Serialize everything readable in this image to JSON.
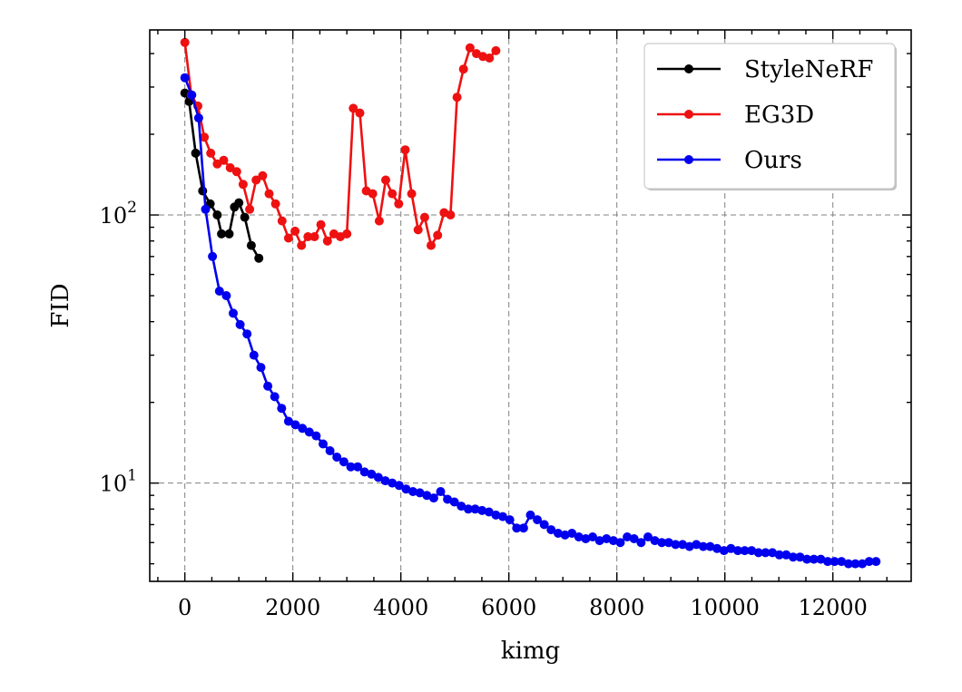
{
  "chart_data": {
    "type": "line",
    "xlabel": "kimg",
    "ylabel": "FID",
    "xlim": [
      -650,
      13450
    ],
    "ylim": [
      4.3,
      490
    ],
    "y_scale": "log",
    "x_ticks": [
      0,
      2000,
      4000,
      6000,
      8000,
      10000,
      12000
    ],
    "x_tick_labels": [
      "0",
      "2000",
      "4000",
      "6000",
      "8000",
      "10000",
      "12000"
    ],
    "y_ticks": [
      10,
      100
    ],
    "y_tick_labels": [
      {
        "base": "10",
        "exp": "1"
      },
      {
        "base": "10",
        "exp": "2"
      }
    ],
    "grid": true,
    "legend_position": "top-right",
    "series": [
      {
        "name": "StyleNeRF",
        "color": "#000000",
        "x": [
          0,
          80,
          200,
          330,
          470,
          600,
          680,
          820,
          920,
          1000,
          1110,
          1230,
          1370
        ],
        "y": [
          285,
          265,
          170,
          123,
          110,
          100,
          85,
          85,
          107,
          111,
          98,
          77,
          69
        ]
      },
      {
        "name": "EG3D",
        "color": "#ee1111",
        "x": [
          0,
          120,
          240,
          360,
          480,
          600,
          720,
          840,
          960,
          1080,
          1200,
          1320,
          1440,
          1560,
          1680,
          1800,
          1920,
          2040,
          2160,
          2280,
          2400,
          2520,
          2640,
          2760,
          2880,
          3000,
          3120,
          3240,
          3360,
          3480,
          3600,
          3720,
          3840,
          3960,
          4080,
          4200,
          4320,
          4440,
          4560,
          4680,
          4800,
          4920,
          5040,
          5160,
          5280,
          5400,
          5520,
          5640,
          5760
        ],
        "y": [
          440,
          280,
          255,
          195,
          170,
          155,
          160,
          150,
          145,
          130,
          105,
          135,
          140,
          120,
          110,
          95,
          82,
          87,
          77,
          83,
          83,
          92,
          80,
          85,
          83,
          85,
          250,
          240,
          123,
          120,
          95,
          135,
          120,
          110,
          175,
          120,
          88,
          98,
          77,
          84,
          102,
          100,
          275,
          350,
          420,
          400,
          390,
          385,
          410
        ]
      },
      {
        "name": "Ours",
        "color": "#0000ee",
        "x": [
          0,
          128,
          256,
          384,
          512,
          640,
          768,
          896,
          1024,
          1152,
          1280,
          1408,
          1536,
          1664,
          1792,
          1920,
          2048,
          2176,
          2304,
          2432,
          2560,
          2688,
          2816,
          2944,
          3072,
          3200,
          3328,
          3456,
          3584,
          3712,
          3840,
          3968,
          4096,
          4224,
          4352,
          4480,
          4608,
          4736,
          4864,
          4992,
          5120,
          5248,
          5376,
          5504,
          5632,
          5760,
          5888,
          6016,
          6144,
          6272,
          6400,
          6528,
          6656,
          6784,
          6912,
          7040,
          7168,
          7296,
          7424,
          7552,
          7680,
          7808,
          7936,
          8064,
          8192,
          8320,
          8448,
          8576,
          8704,
          8832,
          8960,
          9088,
          9216,
          9344,
          9472,
          9600,
          9728,
          9856,
          9984,
          10112,
          10240,
          10368,
          10496,
          10624,
          10752,
          10880,
          11008,
          11136,
          11264,
          11392,
          11520,
          11648,
          11776,
          11904,
          12032,
          12160,
          12288,
          12416,
          12544,
          12672,
          12800
        ],
        "y": [
          325,
          280,
          230,
          105,
          70,
          52,
          50,
          43,
          39,
          36,
          30,
          27,
          23,
          21,
          19,
          17,
          16.5,
          16,
          15.5,
          15,
          14,
          13.2,
          12.5,
          12,
          11.5,
          11.5,
          11,
          10.8,
          10.5,
          10.2,
          10,
          9.8,
          9.5,
          9.3,
          9.2,
          9,
          8.8,
          9.3,
          8.7,
          8.5,
          8.2,
          8,
          8,
          7.9,
          7.8,
          7.6,
          7.5,
          7.3,
          6.8,
          6.8,
          7.6,
          7.3,
          7,
          6.7,
          6.5,
          6.4,
          6.5,
          6.3,
          6.2,
          6.3,
          6.1,
          6.2,
          6.1,
          6,
          6.3,
          6.2,
          6,
          6.3,
          6.1,
          6,
          6,
          5.9,
          5.9,
          5.8,
          5.9,
          5.8,
          5.8,
          5.7,
          5.6,
          5.7,
          5.6,
          5.6,
          5.6,
          5.5,
          5.5,
          5.5,
          5.4,
          5.4,
          5.3,
          5.3,
          5.2,
          5.2,
          5.2,
          5.1,
          5.1,
          5.1,
          5,
          5,
          5,
          5.1,
          5.1
        ]
      }
    ]
  }
}
